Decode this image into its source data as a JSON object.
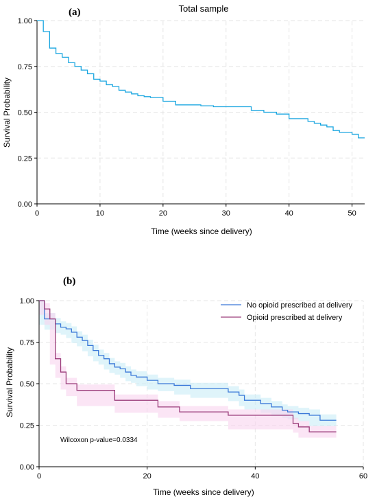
{
  "chart_data": [
    {
      "type": "line",
      "panel_label": "(a)",
      "title": "Total sample",
      "xlabel": "Time (weeks since delivery)",
      "ylabel": "Survival Probability",
      "xlim": [
        0,
        52
      ],
      "ylim": [
        0,
        1
      ],
      "xticks": [
        0,
        10,
        20,
        30,
        40,
        50
      ],
      "yticks": [
        0,
        0.25,
        0.5,
        0.75,
        1
      ],
      "ytick_labels": [
        "0.00",
        "0.25",
        "0.50",
        "0.75",
        "1.00"
      ],
      "grid": true,
      "series": [
        {
          "color": "#1aa6e0",
          "step": true,
          "x": [
            0,
            1,
            2,
            3,
            4,
            5,
            6,
            7,
            8,
            9,
            10,
            11,
            12,
            13,
            14,
            15,
            16,
            17,
            18,
            20,
            22,
            26,
            28,
            34,
            36,
            38,
            40,
            43,
            44,
            45,
            46,
            47,
            48,
            50,
            51,
            52
          ],
          "y": [
            1.0,
            0.94,
            0.85,
            0.82,
            0.8,
            0.77,
            0.75,
            0.73,
            0.71,
            0.68,
            0.67,
            0.65,
            0.64,
            0.62,
            0.61,
            0.6,
            0.59,
            0.585,
            0.58,
            0.56,
            0.54,
            0.535,
            0.53,
            0.51,
            0.5,
            0.49,
            0.465,
            0.45,
            0.44,
            0.43,
            0.42,
            0.4,
            0.39,
            0.38,
            0.36,
            0.36
          ]
        }
      ]
    },
    {
      "type": "line",
      "panel_label": "(b)",
      "xlabel": "Time (weeks since delivery)",
      "ylabel": "Survival Probability",
      "xlim": [
        0,
        60
      ],
      "ylim": [
        0,
        1
      ],
      "xticks": [
        0,
        20,
        40,
        60
      ],
      "yticks": [
        0,
        0.25,
        0.5,
        0.75,
        1
      ],
      "ytick_labels": [
        "0.00",
        "0.25",
        "0.50",
        "0.75",
        "1.00"
      ],
      "grid": true,
      "legend_position": "top-right",
      "annotation": "Wilcoxon p-value=0.0334",
      "series": [
        {
          "name": "No opioid prescribed at delivery",
          "color": "#3a78d8",
          "band_color": "#c9ecf6",
          "step": true,
          "x": [
            0,
            1,
            3,
            4,
            5,
            6,
            7,
            8,
            9,
            10,
            11,
            12,
            13,
            14,
            15,
            16,
            17,
            18,
            20,
            22,
            25,
            28,
            35,
            37,
            38,
            41,
            43,
            45,
            46,
            48,
            50,
            52,
            55
          ],
          "y": [
            1.0,
            0.89,
            0.86,
            0.84,
            0.83,
            0.81,
            0.78,
            0.76,
            0.73,
            0.7,
            0.67,
            0.65,
            0.62,
            0.6,
            0.59,
            0.57,
            0.55,
            0.54,
            0.52,
            0.5,
            0.49,
            0.47,
            0.45,
            0.43,
            0.4,
            0.38,
            0.36,
            0.34,
            0.33,
            0.32,
            0.31,
            0.28,
            0.28
          ]
        },
        {
          "name": "Opioid prescribed at delivery",
          "color": "#9a3c7a",
          "band_color": "#f9d4ee",
          "step": true,
          "x": [
            0,
            1,
            2,
            3,
            4,
            5,
            7,
            14,
            22,
            26,
            35,
            47,
            48,
            50,
            55
          ],
          "y": [
            1.0,
            0.95,
            0.89,
            0.65,
            0.57,
            0.5,
            0.46,
            0.4,
            0.36,
            0.33,
            0.31,
            0.26,
            0.24,
            0.21,
            0.21
          ]
        }
      ]
    }
  ]
}
